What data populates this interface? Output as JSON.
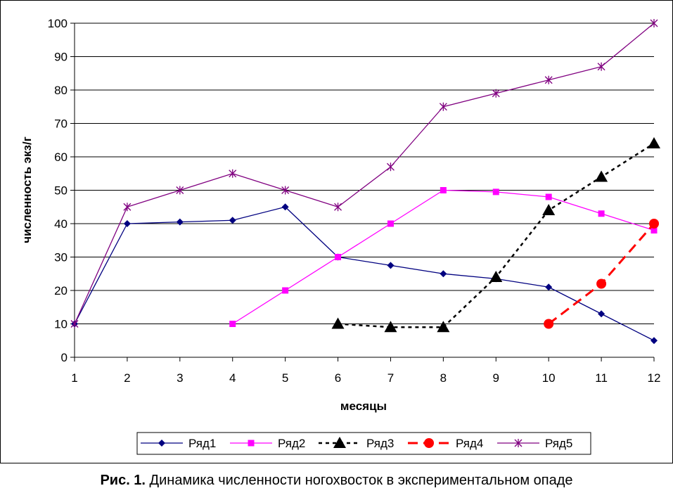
{
  "chart_data": {
    "type": "line",
    "title": "",
    "xlabel": "месяцы",
    "ylabel": "численность экз/г",
    "categories": [
      "1",
      "2",
      "3",
      "4",
      "5",
      "6",
      "7",
      "8",
      "9",
      "10",
      "11",
      "12"
    ],
    "ylim": [
      0,
      100
    ],
    "yticks": [
      "0",
      "10",
      "20",
      "30",
      "40",
      "50",
      "60",
      "70",
      "80",
      "90",
      "100"
    ],
    "grid": true,
    "legend_position": "bottom",
    "series": [
      {
        "name": "Ряд1",
        "color": "#000080",
        "dash": "solid",
        "marker": "diamond",
        "values": [
          10,
          40,
          40.5,
          41,
          45,
          30,
          27.5,
          25,
          23.5,
          21,
          13,
          5
        ]
      },
      {
        "name": "Ряд2",
        "color": "#FF00FF",
        "dash": "solid",
        "marker": "square",
        "values": [
          null,
          null,
          null,
          10,
          20,
          30,
          40,
          50,
          49.5,
          48,
          43,
          38
        ]
      },
      {
        "name": "Ряд3",
        "color": "#000000",
        "dash": "dashed",
        "marker": "triangle",
        "values": [
          null,
          null,
          null,
          null,
          null,
          10,
          9,
          9,
          24,
          44,
          54,
          64
        ]
      },
      {
        "name": "Ряд4",
        "color": "#FF0000",
        "dash": "longdash",
        "marker": "circle",
        "values": [
          null,
          null,
          null,
          null,
          null,
          null,
          null,
          null,
          null,
          10,
          22,
          40
        ]
      },
      {
        "name": "Ряд5",
        "color": "#800080",
        "dash": "solid",
        "marker": "asterisk",
        "values": [
          10,
          45,
          50,
          55,
          50,
          45,
          57,
          75,
          79,
          83,
          87,
          100
        ]
      }
    ]
  },
  "caption": {
    "prefix": "Рис. 1.",
    "text": " Динамика численности ногохвосток в экспериментальном опаде"
  }
}
